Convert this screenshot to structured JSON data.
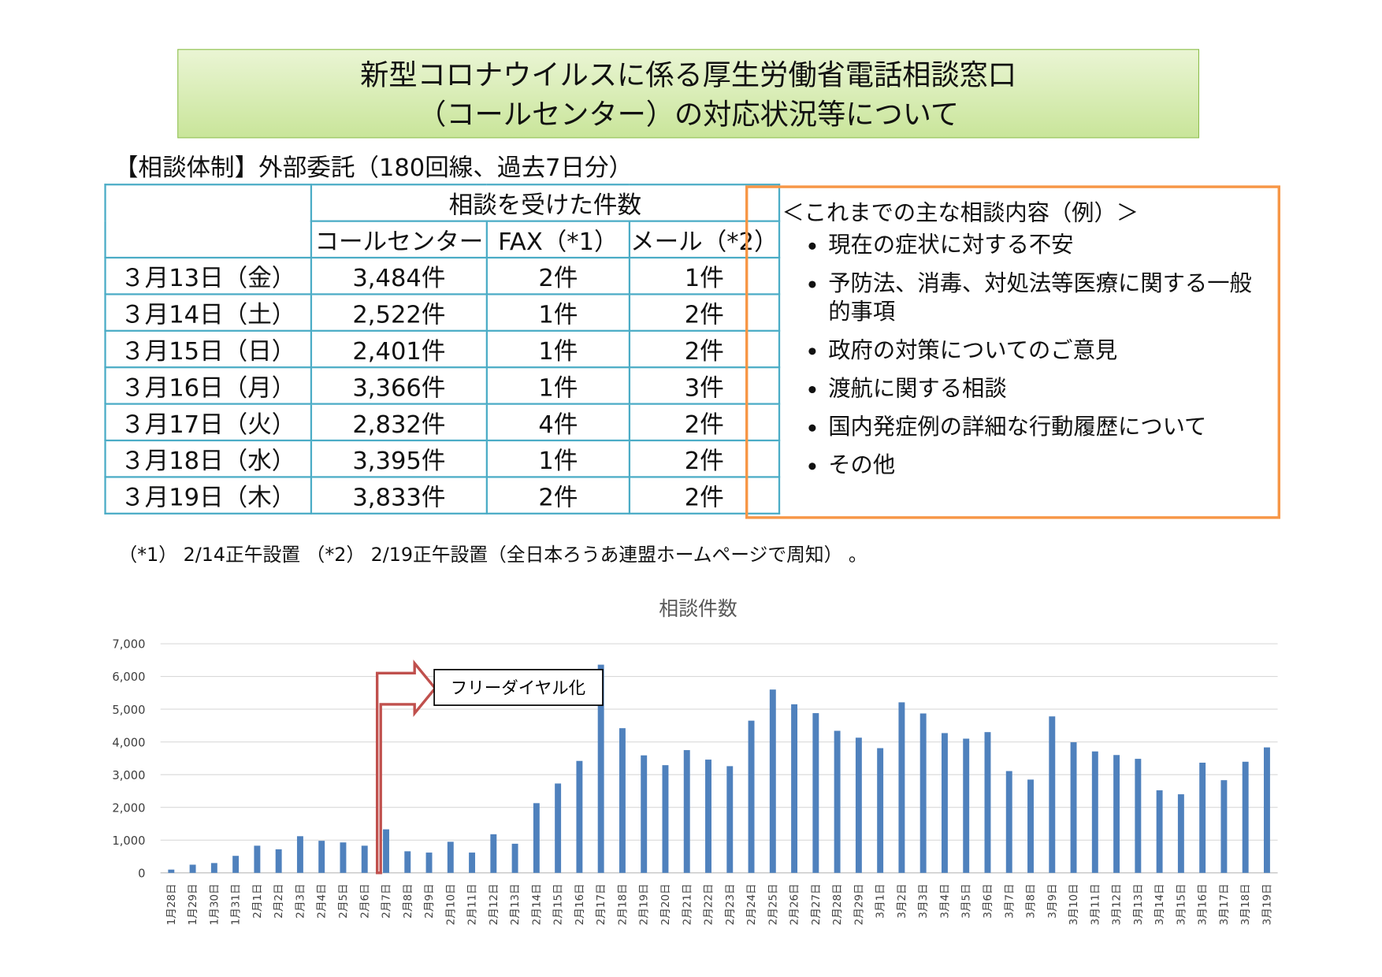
{
  "header": {
    "title_lines": [
      "新型コロナウイルスに係る厚生労働省電話相談窓口",
      "（コールセンター）の対応状況等について"
    ]
  },
  "system_note": "【相談体制】外部委託（180回線、過去7日分）",
  "table": {
    "group_header": "相談を受けた件数",
    "columns": [
      "コールセンター",
      "FAX（*1）",
      "メール（*2）"
    ],
    "rows": [
      [
        "３月13日（金）",
        "3,484件",
        "2件",
        "1件"
      ],
      [
        "３月14日（土）",
        "2,522件",
        "1件",
        "2件"
      ],
      [
        "３月15日（日）",
        "2,401件",
        "1件",
        "2件"
      ],
      [
        "３月16日（月）",
        "3,366件",
        "1件",
        "3件"
      ],
      [
        "３月17日（火）",
        "2,832件",
        "4件",
        "2件"
      ],
      [
        "３月18日（水）",
        "3,395件",
        "1件",
        "2件"
      ],
      [
        "３月19日（木）",
        "3,833件",
        "2件",
        "2件"
      ]
    ]
  },
  "consultations": {
    "heading": "＜これまでの主な相談内容（例）＞",
    "items": [
      "現在の症状に対する不安",
      "予防法、消毒、対処法等医療に関する一般的事項",
      "政府の対策についてのご意見",
      "渡航に関する相談",
      "国内発症例の詳細な行動履歴について",
      "その他"
    ]
  },
  "footnote": "（*1） 2/14正午設置 （*2） 2/19正午設置（全日本ろうあ連盟ホームページで周知） 。",
  "chart_data": {
    "type": "bar",
    "title": "相談件数",
    "color": "#4f81bd",
    "grid": true,
    "annotation": "フリーダイヤル化",
    "categories": [
      "1月28日",
      "1月29日",
      "1月30日",
      "1月31日",
      "2月1日",
      "2月2日",
      "2月3日",
      "2月4日",
      "2月5日",
      "2月6日",
      "2月7日",
      "2月8日",
      "2月9日",
      "2月10日",
      "2月11日",
      "2月12日",
      "2月13日",
      "2月14日",
      "2月15日",
      "2月16日",
      "2月17日",
      "2月18日",
      "2月19日",
      "2月20日",
      "2月21日",
      "2月22日",
      "2月23日",
      "2月24日",
      "2月25日",
      "2月26日",
      "2月27日",
      "2月28日",
      "2月29日",
      "3月1日",
      "3月2日",
      "3月3日",
      "3月4日",
      "3月5日",
      "3月6日",
      "3月7日",
      "3月8日",
      "3月9日",
      "3月10日",
      "3月11日",
      "3月12日",
      "3月13日",
      "3月14日",
      "3月15日",
      "3月16日",
      "3月17日",
      "3月18日",
      "3月19日"
    ],
    "values": [
      100,
      250,
      300,
      520,
      830,
      720,
      1120,
      980,
      930,
      830,
      1330,
      660,
      620,
      950,
      620,
      1180,
      890,
      2130,
      2730,
      3420,
      6360,
      4420,
      3590,
      3290,
      3750,
      3460,
      3260,
      4650,
      5600,
      5150,
      4880,
      4340,
      4130,
      3810,
      5210,
      4870,
      4270,
      4100,
      4300,
      3110,
      2850,
      4780,
      3990,
      3710,
      3600,
      3484,
      2522,
      2401,
      3366,
      2832,
      3395,
      3833
    ],
    "ylim": [
      0,
      7000
    ],
    "yticks": [
      0,
      {
        "value": 1000,
        "label": "1,000"
      },
      {
        "value": 2000,
        "label": "2,000"
      },
      {
        "value": 3000,
        "label": "3,000"
      },
      {
        "value": 4000,
        "label": "4,000"
      },
      {
        "value": 5000,
        "label": "5,000"
      },
      {
        "value": 6000,
        "label": "6,000"
      },
      {
        "value": 7000,
        "label": "7,000"
      }
    ]
  }
}
